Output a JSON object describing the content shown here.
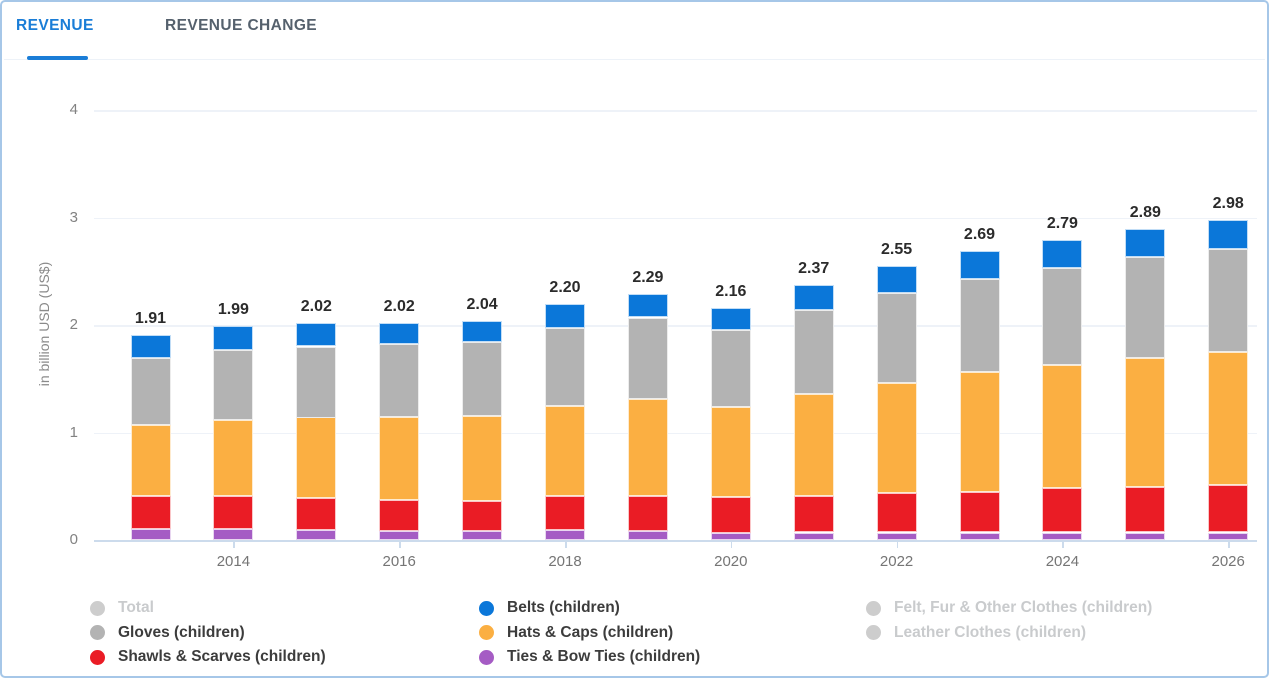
{
  "tabs": [
    {
      "label": "REVENUE",
      "active": true
    },
    {
      "label": "REVENUE CHANGE",
      "active": false
    }
  ],
  "colors": {
    "tab_active": "#1a7dd7",
    "belts_blue": "#0b77d9",
    "gloves_gray": "#b3b3b3",
    "hats_orange": "#fbaf42",
    "shawls_red": "#ea1c25",
    "ties_purple": "#a55cc4",
    "disabled_gray": "#cdcdcd"
  },
  "chart_data": {
    "type": "bar",
    "stacked": true,
    "title": "",
    "xlabel": "",
    "ylabel": "in billion USD (US$)",
    "ylim": [
      0,
      4
    ],
    "yticks": [
      "0",
      "1",
      "2",
      "3",
      "4"
    ],
    "grid": true,
    "legend_position": "bottom",
    "x": [
      2013,
      2014,
      2015,
      2016,
      2017,
      2018,
      2019,
      2020,
      2021,
      2022,
      2023,
      2024,
      2025,
      2026
    ],
    "x_tick_years": [
      2014,
      2016,
      2018,
      2020,
      2022,
      2024,
      2026
    ],
    "series": [
      {
        "name": "Ties & Bow Ties (children)",
        "color": "#a55cc4",
        "values": [
          0.1,
          0.1,
          0.09,
          0.08,
          0.08,
          0.09,
          0.08,
          0.07,
          0.07,
          0.07,
          0.07,
          0.07,
          0.07,
          0.07
        ]
      },
      {
        "name": "Shawls & Scarves (children)",
        "color": "#ea1c25",
        "values": [
          0.31,
          0.31,
          0.3,
          0.29,
          0.28,
          0.32,
          0.33,
          0.33,
          0.34,
          0.37,
          0.38,
          0.41,
          0.42,
          0.44
        ]
      },
      {
        "name": "Hats & Caps (children)",
        "color": "#fbaf42",
        "values": [
          0.66,
          0.71,
          0.75,
          0.77,
          0.79,
          0.84,
          0.9,
          0.84,
          0.95,
          1.02,
          1.11,
          1.15,
          1.2,
          1.24
        ]
      },
      {
        "name": "Gloves (children)",
        "color": "#b3b3b3",
        "values": [
          0.62,
          0.65,
          0.66,
          0.68,
          0.69,
          0.72,
          0.76,
          0.71,
          0.78,
          0.84,
          0.87,
          0.9,
          0.94,
          0.96
        ]
      },
      {
        "name": "Belts (children)",
        "color": "#0b77d9",
        "values": [
          0.22,
          0.22,
          0.22,
          0.2,
          0.2,
          0.23,
          0.22,
          0.21,
          0.23,
          0.25,
          0.26,
          0.26,
          0.26,
          0.27
        ]
      }
    ],
    "totals": [
      "1.91",
      "1.99",
      "2.02",
      "2.02",
      "2.04",
      "2.20",
      "2.29",
      "2.16",
      "2.37",
      "2.55",
      "2.69",
      "2.79",
      "2.89",
      "2.98"
    ]
  },
  "legend": {
    "columns": [
      [
        {
          "label": "Total",
          "color": "#cdcdcd",
          "disabled": true
        },
        {
          "label": "Gloves (children)",
          "color": "#b3b3b3",
          "disabled": false
        },
        {
          "label": "Shawls & Scarves (children)",
          "color": "#ea1c25",
          "disabled": false
        }
      ],
      [
        {
          "label": "Belts (children)",
          "color": "#0b77d9",
          "disabled": false
        },
        {
          "label": "Hats & Caps (children)",
          "color": "#fbaf42",
          "disabled": false
        },
        {
          "label": "Ties & Bow Ties (children)",
          "color": "#a55cc4",
          "disabled": false
        }
      ],
      [
        {
          "label": "Felt, Fur & Other Clothes (children)",
          "color": "#cdcdcd",
          "disabled": true
        },
        {
          "label": "Leather Clothes (children)",
          "color": "#cdcdcd",
          "disabled": true
        }
      ]
    ]
  }
}
